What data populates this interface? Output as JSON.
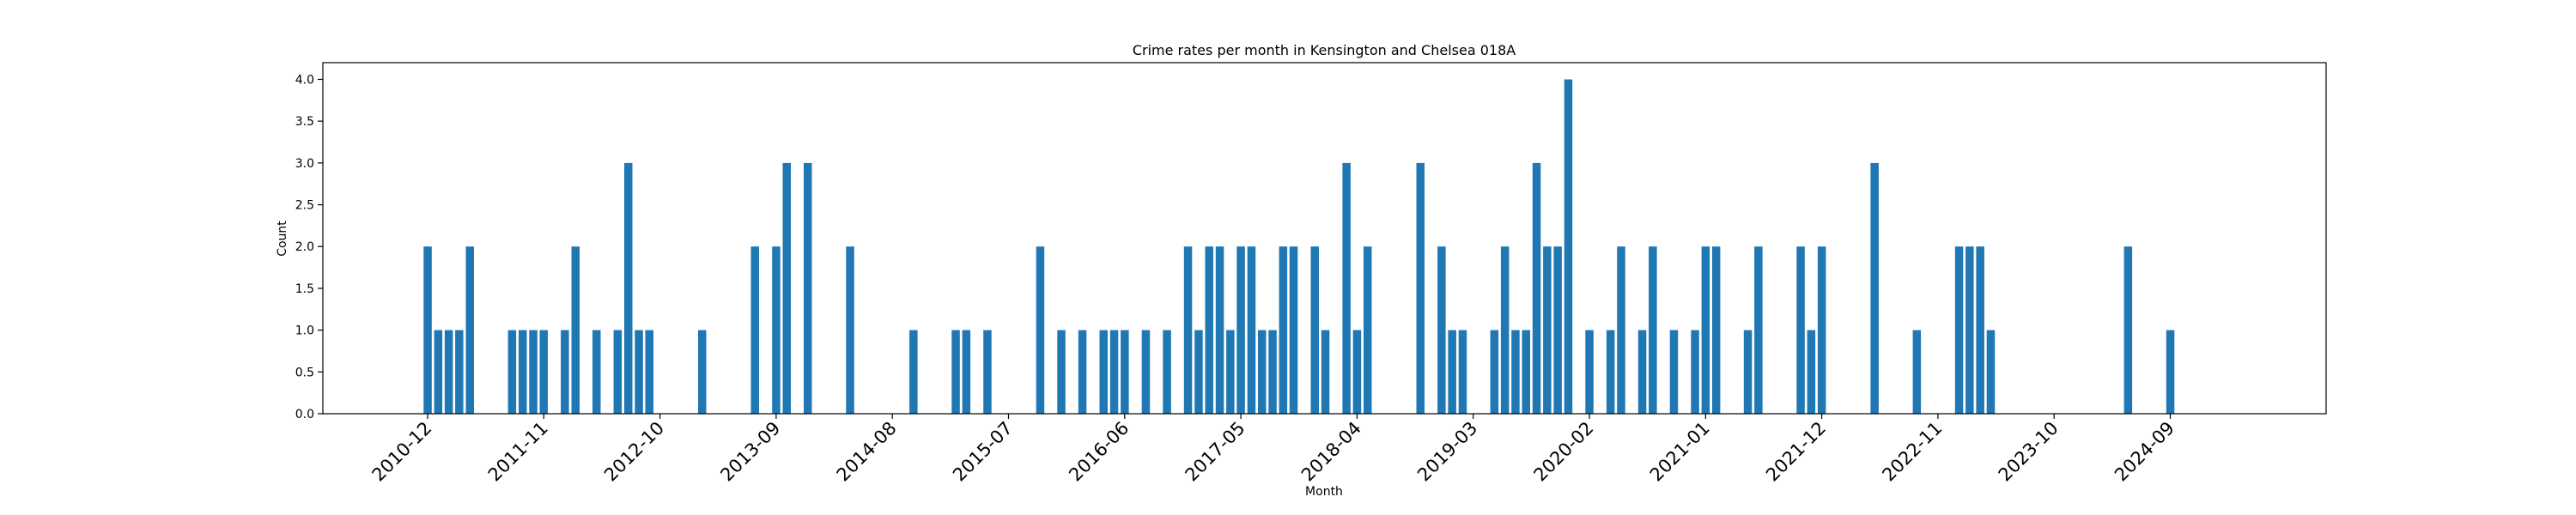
{
  "chart_data": {
    "type": "bar",
    "title": "Crime rates per month in Kensington and Chelsea 018A",
    "xlabel": "Month",
    "ylabel": "Count",
    "ylim": [
      0,
      4.2
    ],
    "yticks": [
      "0.0",
      "0.5",
      "1.0",
      "1.5",
      "2.0",
      "2.5",
      "3.0",
      "3.5",
      "4.0"
    ],
    "xticks": [
      "2010-12",
      "2011-11",
      "2012-10",
      "2013-09",
      "2014-08",
      "2015-07",
      "2016-06",
      "2017-05",
      "2018-04",
      "2019-03",
      "2020-02",
      "2021-01",
      "2021-12",
      "2022-11",
      "2023-10",
      "2024-09"
    ],
    "grid": false,
    "color": "#1f77b4",
    "points": [
      {
        "x": "2010-12",
        "y": 2
      },
      {
        "x": "2011-01",
        "y": 1
      },
      {
        "x": "2011-02",
        "y": 1
      },
      {
        "x": "2011-03",
        "y": 1
      },
      {
        "x": "2011-04",
        "y": 2
      },
      {
        "x": "2011-08",
        "y": 1
      },
      {
        "x": "2011-09",
        "y": 1
      },
      {
        "x": "2011-10",
        "y": 1
      },
      {
        "x": "2011-11",
        "y": 1
      },
      {
        "x": "2012-01",
        "y": 1
      },
      {
        "x": "2012-02",
        "y": 2
      },
      {
        "x": "2012-04",
        "y": 1
      },
      {
        "x": "2012-06",
        "y": 1
      },
      {
        "x": "2012-07",
        "y": 3
      },
      {
        "x": "2012-08",
        "y": 1
      },
      {
        "x": "2012-09",
        "y": 1
      },
      {
        "x": "2013-02",
        "y": 1
      },
      {
        "x": "2013-07",
        "y": 2
      },
      {
        "x": "2013-09",
        "y": 2
      },
      {
        "x": "2013-10",
        "y": 3
      },
      {
        "x": "2013-12",
        "y": 3
      },
      {
        "x": "2014-04",
        "y": 2
      },
      {
        "x": "2014-10",
        "y": 1
      },
      {
        "x": "2015-02",
        "y": 1
      },
      {
        "x": "2015-03",
        "y": 1
      },
      {
        "x": "2015-05",
        "y": 1
      },
      {
        "x": "2015-10",
        "y": 2
      },
      {
        "x": "2015-12",
        "y": 1
      },
      {
        "x": "2016-02",
        "y": 1
      },
      {
        "x": "2016-04",
        "y": 1
      },
      {
        "x": "2016-05",
        "y": 1
      },
      {
        "x": "2016-06",
        "y": 1
      },
      {
        "x": "2016-08",
        "y": 1
      },
      {
        "x": "2016-10",
        "y": 1
      },
      {
        "x": "2016-12",
        "y": 2
      },
      {
        "x": "2017-01",
        "y": 1
      },
      {
        "x": "2017-02",
        "y": 2
      },
      {
        "x": "2017-03",
        "y": 2
      },
      {
        "x": "2017-04",
        "y": 1
      },
      {
        "x": "2017-05",
        "y": 2
      },
      {
        "x": "2017-06",
        "y": 2
      },
      {
        "x": "2017-07",
        "y": 1
      },
      {
        "x": "2017-08",
        "y": 1
      },
      {
        "x": "2017-09",
        "y": 2
      },
      {
        "x": "2017-10",
        "y": 2
      },
      {
        "x": "2017-12",
        "y": 2
      },
      {
        "x": "2018-01",
        "y": 1
      },
      {
        "x": "2018-03",
        "y": 3
      },
      {
        "x": "2018-04",
        "y": 1
      },
      {
        "x": "2018-05",
        "y": 2
      },
      {
        "x": "2018-10",
        "y": 3
      },
      {
        "x": "2018-12",
        "y": 2
      },
      {
        "x": "2019-01",
        "y": 1
      },
      {
        "x": "2019-02",
        "y": 1
      },
      {
        "x": "2019-05",
        "y": 1
      },
      {
        "x": "2019-06",
        "y": 2
      },
      {
        "x": "2019-07",
        "y": 1
      },
      {
        "x": "2019-08",
        "y": 1
      },
      {
        "x": "2019-09",
        "y": 3
      },
      {
        "x": "2019-10",
        "y": 2
      },
      {
        "x": "2019-11",
        "y": 2
      },
      {
        "x": "2019-12",
        "y": 4
      },
      {
        "x": "2020-02",
        "y": 1
      },
      {
        "x": "2020-04",
        "y": 1
      },
      {
        "x": "2020-05",
        "y": 2
      },
      {
        "x": "2020-07",
        "y": 1
      },
      {
        "x": "2020-08",
        "y": 2
      },
      {
        "x": "2020-10",
        "y": 1
      },
      {
        "x": "2020-12",
        "y": 1
      },
      {
        "x": "2021-01",
        "y": 2
      },
      {
        "x": "2021-02",
        "y": 2
      },
      {
        "x": "2021-05",
        "y": 1
      },
      {
        "x": "2021-06",
        "y": 2
      },
      {
        "x": "2021-10",
        "y": 2
      },
      {
        "x": "2021-11",
        "y": 1
      },
      {
        "x": "2021-12",
        "y": 2
      },
      {
        "x": "2022-05",
        "y": 3
      },
      {
        "x": "2022-09",
        "y": 1
      },
      {
        "x": "2023-01",
        "y": 2
      },
      {
        "x": "2023-02",
        "y": 2
      },
      {
        "x": "2023-03",
        "y": 2
      },
      {
        "x": "2023-04",
        "y": 1
      },
      {
        "x": "2024-05",
        "y": 2
      },
      {
        "x": "2024-09",
        "y": 1
      }
    ]
  }
}
